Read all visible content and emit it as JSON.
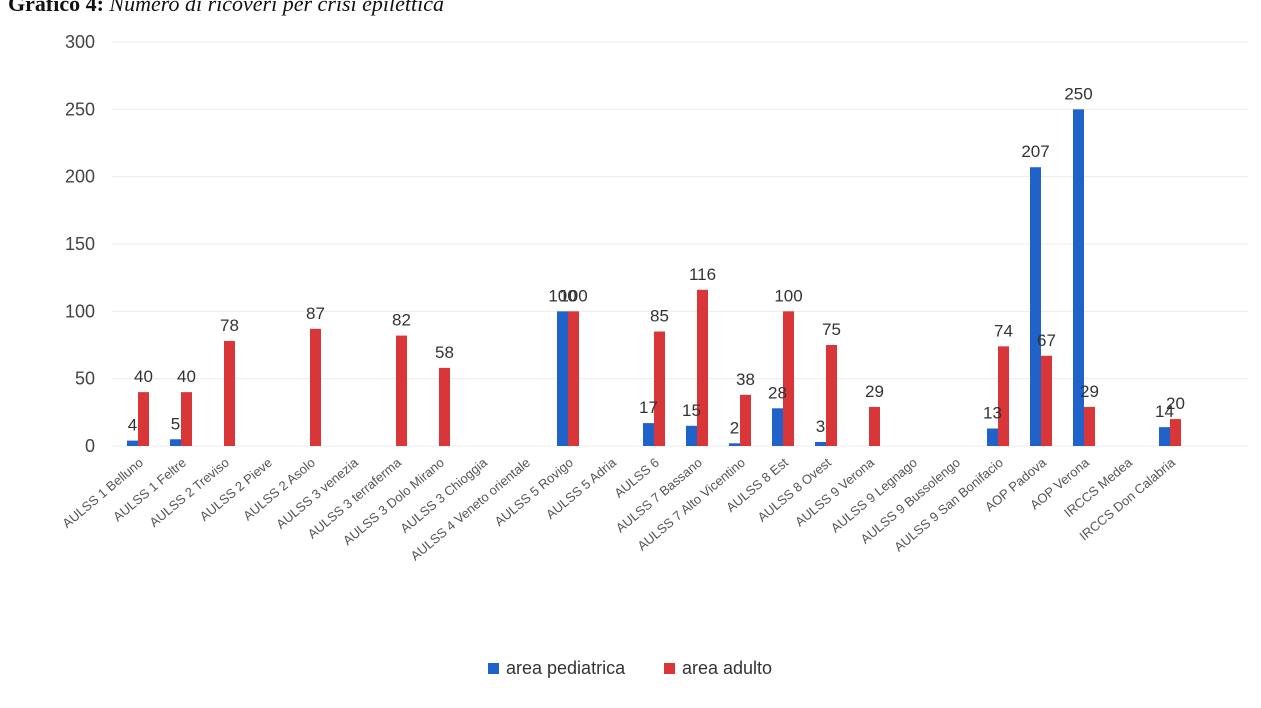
{
  "caption": {
    "prefix": "Grafico 4:",
    "text": "Numero di ricoveri per crisi epilettica"
  },
  "colors": {
    "area_pediatrica": "#1f62c9",
    "area_adulto": "#d9363a",
    "grid": "#ececec"
  },
  "chart_data": {
    "type": "bar",
    "title": "",
    "xlabel": "",
    "ylabel": "",
    "ylim": [
      0,
      300
    ],
    "yticks": [
      0,
      50,
      100,
      150,
      200,
      250,
      300
    ],
    "grid": true,
    "legend": "bottom-center",
    "categories": [
      "AULSS 1 Belluno",
      "AULSS 1 Feltre",
      "AULSS 2 Treviso",
      "AULSS 2 Pieve",
      "AULSS 2 Asolo",
      "AULSS 3 venezia",
      "AULSS 3 terraferma",
      "AULSS 3 Dolo Mirano",
      "AULSS 3 Chioggia",
      "AULSS 4 Veneto orientale",
      "AULSS 5 Rovigo",
      "AULSS 5 Adria",
      "AULSS 6",
      "AULSS 7 Bassano",
      "AULSS 7 Alto Vicentino",
      "AULSS 8 Est",
      "AULSS 8 Ovest",
      "AULSS 9 Verona",
      "AULSS 9 Legnago",
      "AULSS 9 Bussolengo",
      "AULSS 9 San Bonifacio",
      "AOP Padova",
      "AOP Verona",
      "IRCCS Medea",
      "IRCCS Don Calabria"
    ],
    "series": [
      {
        "name": "area pediatrica",
        "values": [
          4,
          5,
          null,
          null,
          null,
          null,
          null,
          null,
          null,
          null,
          100,
          null,
          17,
          15,
          2,
          28,
          3,
          null,
          null,
          null,
          13,
          207,
          250,
          null,
          14
        ]
      },
      {
        "name": "area adulto",
        "values": [
          40,
          40,
          78,
          null,
          87,
          null,
          82,
          58,
          null,
          null,
          100,
          null,
          85,
          116,
          38,
          100,
          75,
          29,
          null,
          null,
          74,
          67,
          29,
          null,
          20
        ]
      }
    ]
  }
}
